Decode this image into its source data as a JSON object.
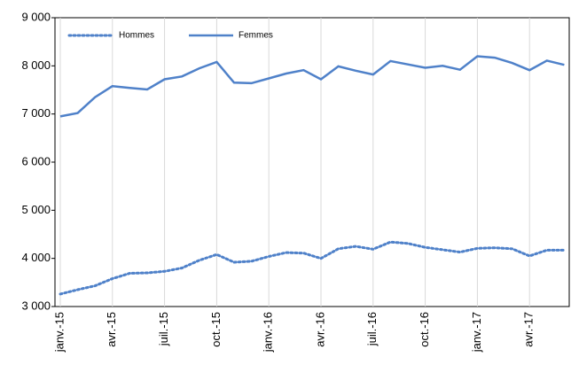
{
  "chart_data": {
    "type": "line",
    "categories": [
      "janv.-15",
      null,
      null,
      "avr.-15",
      null,
      null,
      "juil.-15",
      null,
      null,
      "oct.-15",
      null,
      null,
      "janv.-16",
      null,
      null,
      "avr.-16",
      null,
      null,
      "juil.-16",
      null,
      null,
      "oct.-16",
      null,
      null,
      "janv.-17",
      null,
      null,
      "avr.-17",
      null,
      null
    ],
    "series": [
      {
        "name": "Hommes",
        "color": "#4f81c9",
        "dash": "dotted",
        "values": [
          3260,
          3350,
          3430,
          3580,
          3690,
          3700,
          3730,
          3800,
          3960,
          4080,
          3920,
          3940,
          4040,
          4120,
          4110,
          4000,
          4200,
          4250,
          4190,
          4340,
          4310,
          4230,
          4180,
          4130,
          4210,
          4220,
          4200,
          4050,
          4170,
          4170
        ]
      },
      {
        "name": "Femmes",
        "color": "#4f81c9",
        "dash": "solid",
        "values": [
          6950,
          7020,
          7350,
          7580,
          7540,
          7510,
          7720,
          7780,
          7950,
          8080,
          7650,
          7640,
          7740,
          7840,
          7910,
          7720,
          7990,
          7900,
          7820,
          8100,
          8030,
          7960,
          8000,
          7920,
          8200,
          8170,
          8060,
          7910,
          8110,
          8020
        ]
      }
    ],
    "ylim": [
      3000,
      9000
    ],
    "yticks": [
      {
        "value": 3000,
        "label": "3 000"
      },
      {
        "value": 4000,
        "label": "4 000"
      },
      {
        "value": 5000,
        "label": "5 000"
      },
      {
        "value": 6000,
        "label": "6 000"
      },
      {
        "value": 7000,
        "label": "7 000"
      },
      {
        "value": 8000,
        "label": "8 000"
      },
      {
        "value": 9000,
        "label": "9 000"
      }
    ],
    "grid": "x",
    "legend": "top-left"
  }
}
